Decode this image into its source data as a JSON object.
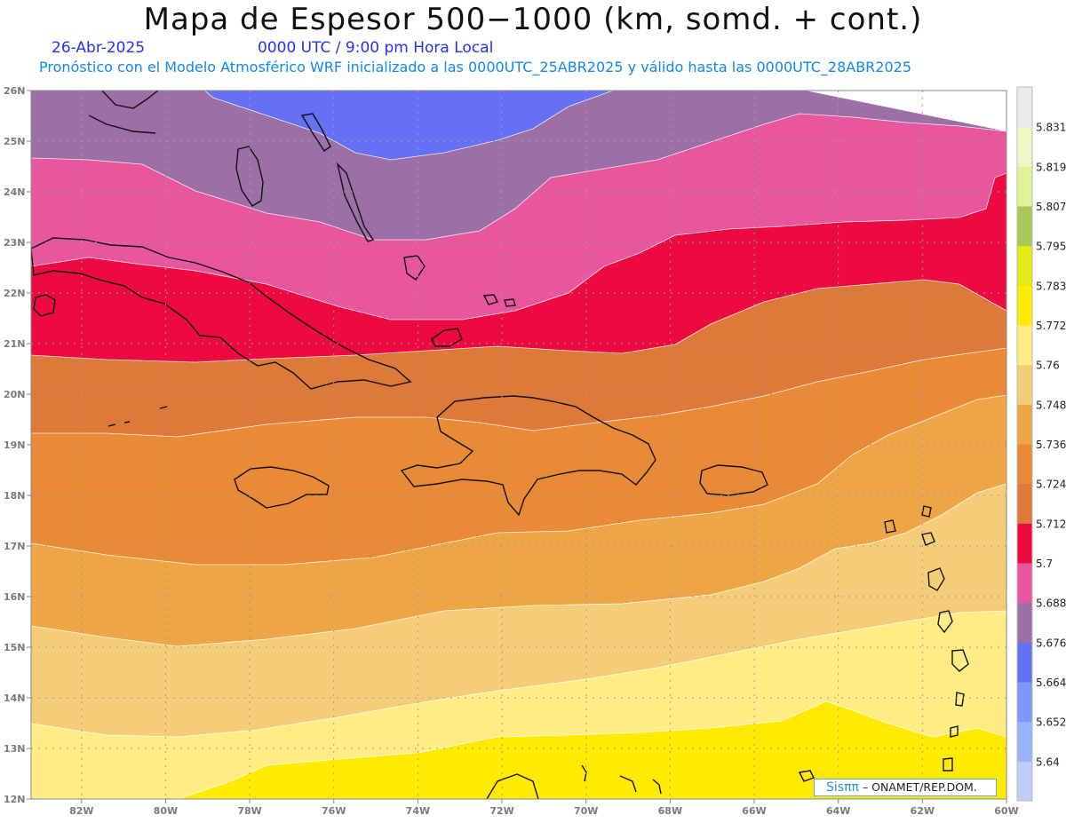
{
  "header": {
    "title": "Mapa de Espesor 500−1000 (km, somd. + cont.)",
    "date": "26-Abr-2025",
    "time": "0000 UTC / 9:00 pm Hora Local",
    "forecast": "Pronóstico con el Modelo Atmosférico WRF inicializado a las 0000UTC_25ABR2025 y válido hasta las  0000UTC_28ABR2025"
  },
  "map": {
    "lat_range": [
      12,
      26
    ],
    "lon_range": [
      -83.2,
      -60
    ],
    "lat_ticks": [
      "12N",
      "13N",
      "14N",
      "15N",
      "16N",
      "17N",
      "18N",
      "19N",
      "20N",
      "21N",
      "22N",
      "23N",
      "24N",
      "25N",
      "26N"
    ],
    "lon_ticks": [
      "82W",
      "80W",
      "78W",
      "76W",
      "74W",
      "72W",
      "70W",
      "68W",
      "66W",
      "64W",
      "62W",
      "60W"
    ],
    "grid": true,
    "bands": [
      {
        "level": "5.772",
        "color": "#FFEA00"
      },
      {
        "level": "5.76",
        "color": "#FFEC84"
      },
      {
        "level": "5.748",
        "color": "#F5CD78"
      },
      {
        "level": "5.736",
        "color": "#EEA546"
      },
      {
        "level": "5.724",
        "color": "#E88A36"
      },
      {
        "level": "5.712",
        "color": "#DD7A3A"
      },
      {
        "level": "5.7",
        "color": "#EC0A40"
      },
      {
        "level": "5.688",
        "color": "#E8579D"
      },
      {
        "level": "5.676",
        "color": "#9C70A6"
      },
      {
        "level": "5.664",
        "color": "#6670F5"
      }
    ]
  },
  "colorbar": {
    "labels": [
      "5.64",
      "5.652",
      "5.664",
      "5.676",
      "5.688",
      "5.7",
      "5.712",
      "5.724",
      "5.736",
      "5.748",
      "5.76",
      "5.772",
      "5.783",
      "5.795",
      "5.807",
      "5.819",
      "5.831"
    ],
    "colors": [
      "#C0CDFC",
      "#98B2FC",
      "#7E97F9",
      "#6670F5",
      "#9C70A6",
      "#E8579D",
      "#EC0A40",
      "#DD7A3A",
      "#E88A36",
      "#EEA546",
      "#F5CD78",
      "#FFEC84",
      "#FFEA00",
      "#E5EA12",
      "#A8C957",
      "#DFF39A",
      "#F0F6C8",
      "#EBEBEB"
    ]
  },
  "credit": {
    "sis": "Sisππ",
    "org": "– ONAMET/REP.DOM."
  }
}
